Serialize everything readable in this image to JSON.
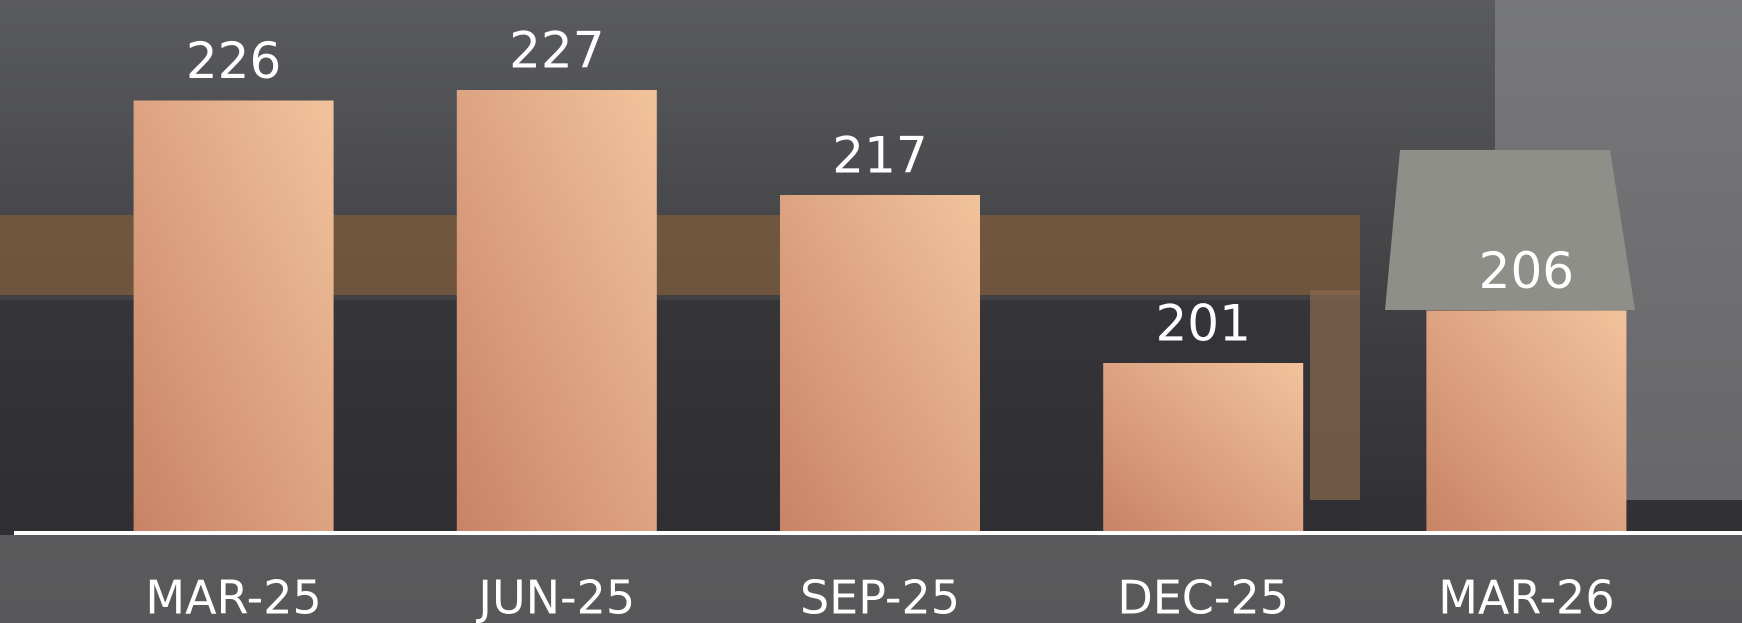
{
  "chart_data": {
    "type": "bar",
    "categories": [
      "MAR-25",
      "JUN-25",
      "SEP-25",
      "DEC-25",
      "MAR-26"
    ],
    "values": [
      226,
      227,
      217,
      201,
      206
    ],
    "ylim": [
      185,
      235
    ]
  }
}
